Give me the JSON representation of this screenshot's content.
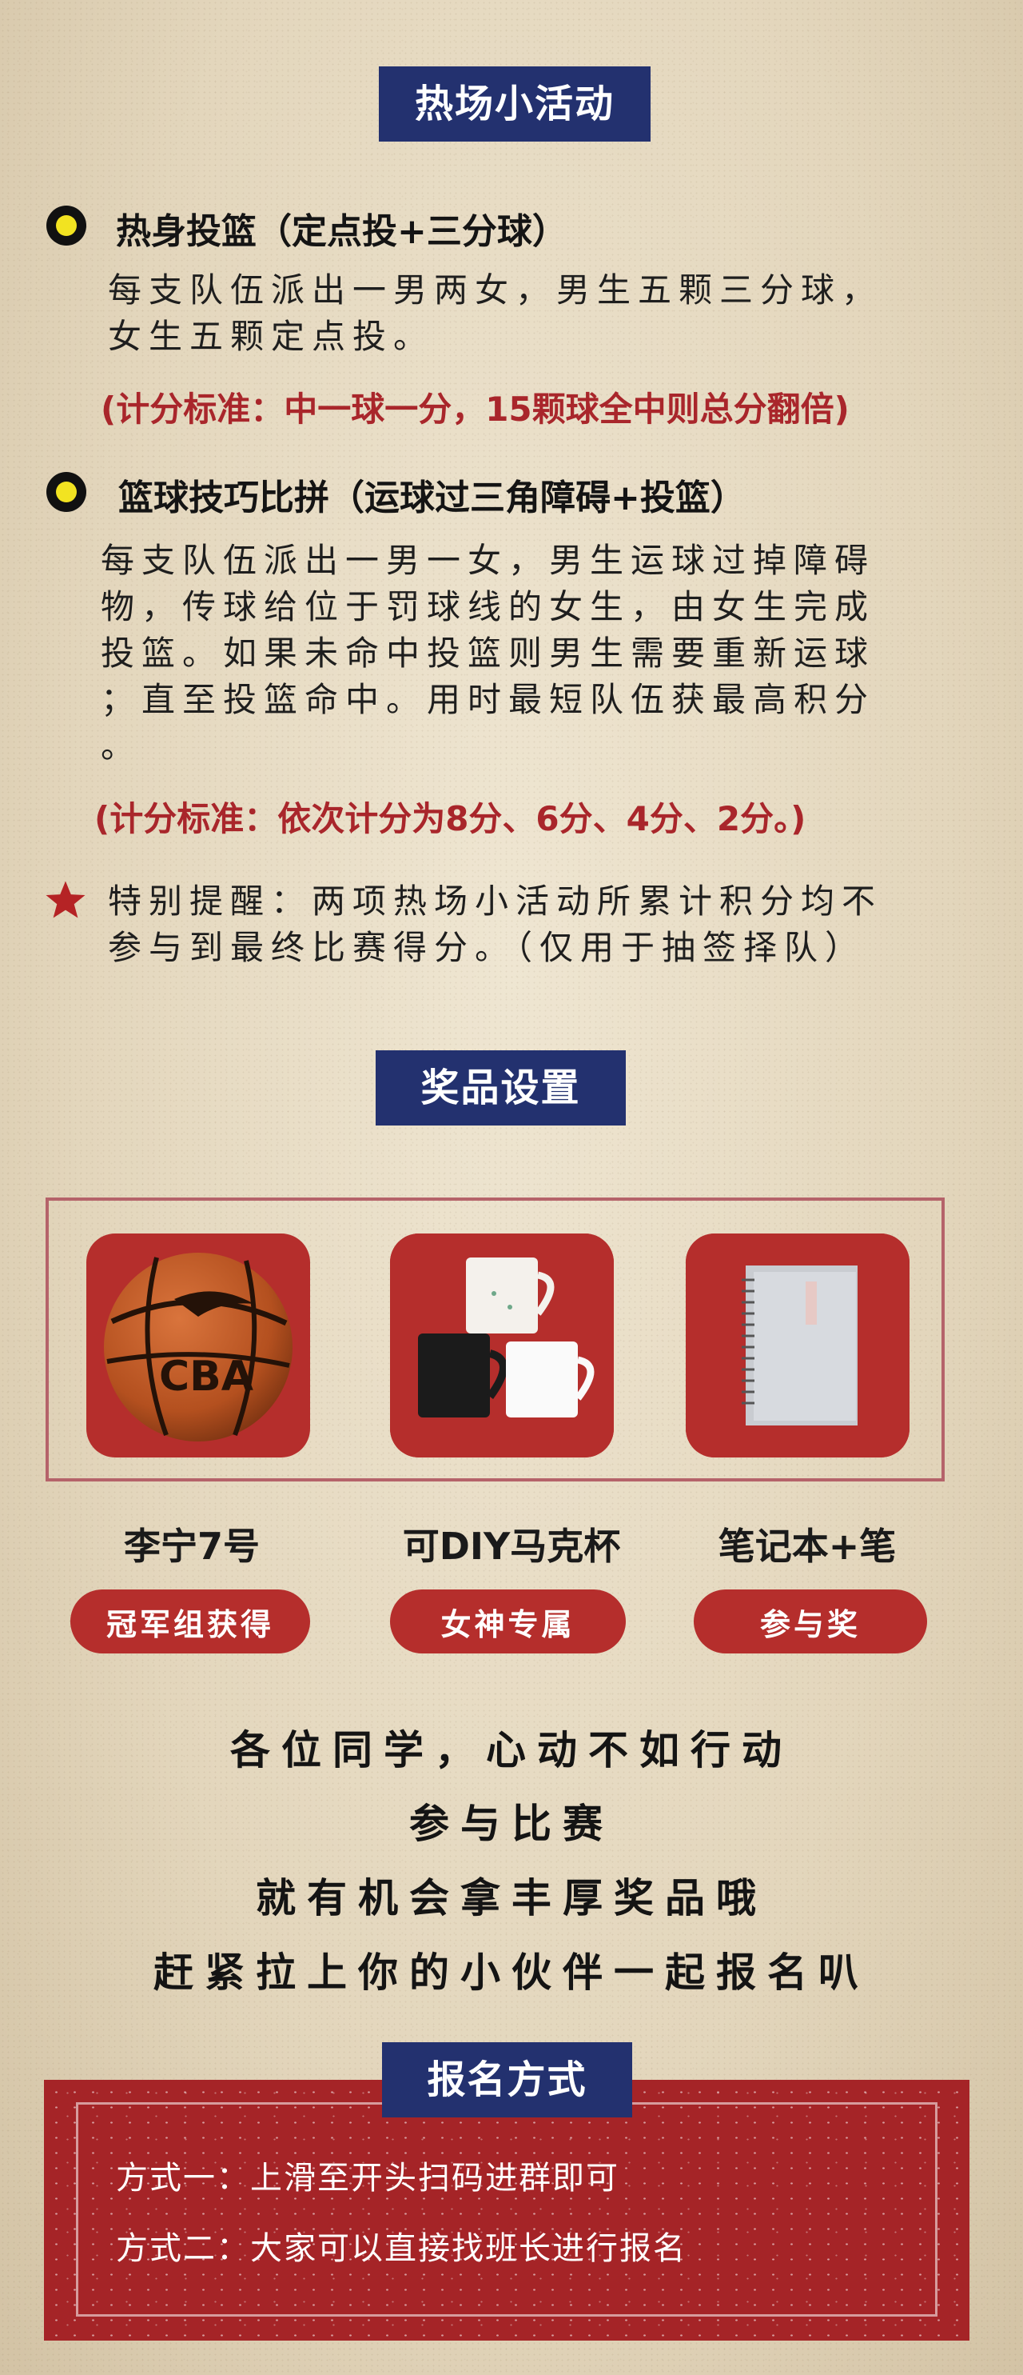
{
  "section1": {
    "title": "热场小活动",
    "activity1": {
      "heading": "热身投篮（定点投+三分球）",
      "desc_line1": "每支队伍派出一男两女，男生五颗三分球，",
      "desc_line2": "女生五颗定点投。",
      "score": "(计分标准：中一球一分，15颗球全中则总分翻倍)"
    },
    "activity2": {
      "heading": "篮球技巧比拼（运球过三角障碍+投篮）",
      "desc_line1": "每支队伍派出一男一女，男生运球过掉障碍",
      "desc_line2": "物，传球给位于罚球线的女生，由女生完成",
      "desc_line3": "投篮。如果未命中投篮则男生需要重新运球",
      "desc_line4": "；直至投篮命中。用时最短队伍获最高积分",
      "desc_line5": "。",
      "score": "(计分标准：依次计分为8分、6分、4分、2分。)"
    },
    "reminder_line1": "特别提醒：两项热场小活动所累计积分均不",
    "reminder_line2": "参与到最终比赛得分。（仅用于抽签择队）"
  },
  "section2": {
    "title": "奖品设置",
    "prizes": [
      {
        "name": "李宁7号",
        "badge": "冠军组获得",
        "icon": "basketball-icon"
      },
      {
        "name": "可DIY马克杯",
        "badge": "女神专属",
        "icon": "mug-icon"
      },
      {
        "name": "笔记本+笔",
        "badge": "参与奖",
        "icon": "notebook-icon"
      }
    ],
    "basketball_brand": "CBA"
  },
  "slogan": {
    "line1": "各位同学，心动不如行动",
    "line2": "参与比赛",
    "line3": "就有机会拿丰厚奖品哦",
    "line4": "赶紧拉上你的小伙伴一起报名叭"
  },
  "section3": {
    "title": "报名方式",
    "method1": "方式一：上滑至开头扫码进群即可",
    "method2": "方式二：大家可以直接找班长进行报名"
  },
  "colors": {
    "navy": "#23316f",
    "red": "#b52e2c",
    "score_red": "#a9262b",
    "bullet_yellow": "#f2e321"
  }
}
